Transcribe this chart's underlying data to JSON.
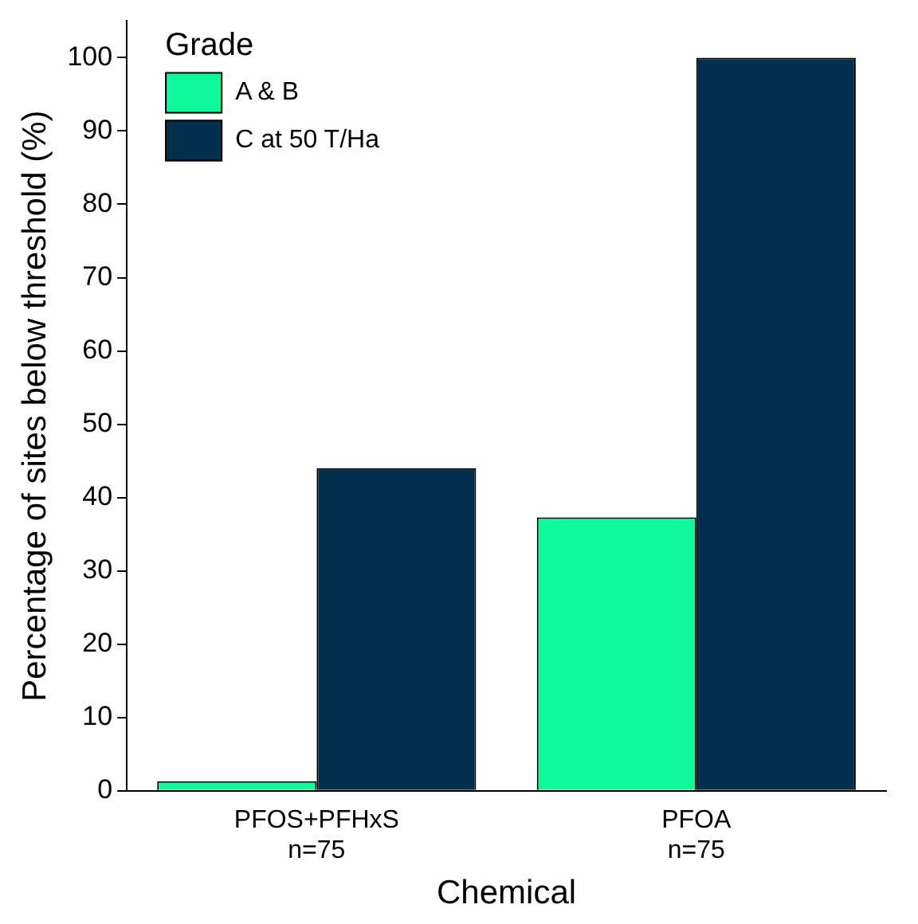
{
  "chart_data": {
    "type": "bar",
    "xlabel": "Chemical",
    "ylabel": "Percentage of sites below threshold (%)",
    "legend_title": "Grade",
    "categories": [
      "PFOS+PFHxS\nn=75",
      "PFOA\nn=75"
    ],
    "series": [
      {
        "name": "A & B",
        "color": "#10f99b",
        "values": [
          1.3,
          37.3
        ]
      },
      {
        "name": "C at 50 T/Ha",
        "color": "#03304c",
        "values": [
          44,
          100
        ]
      }
    ],
    "ylim": [
      0,
      105
    ],
    "yticks": [
      0,
      10,
      20,
      30,
      40,
      50,
      60,
      70,
      80,
      90,
      100
    ],
    "grid": false,
    "legend": "top left"
  }
}
